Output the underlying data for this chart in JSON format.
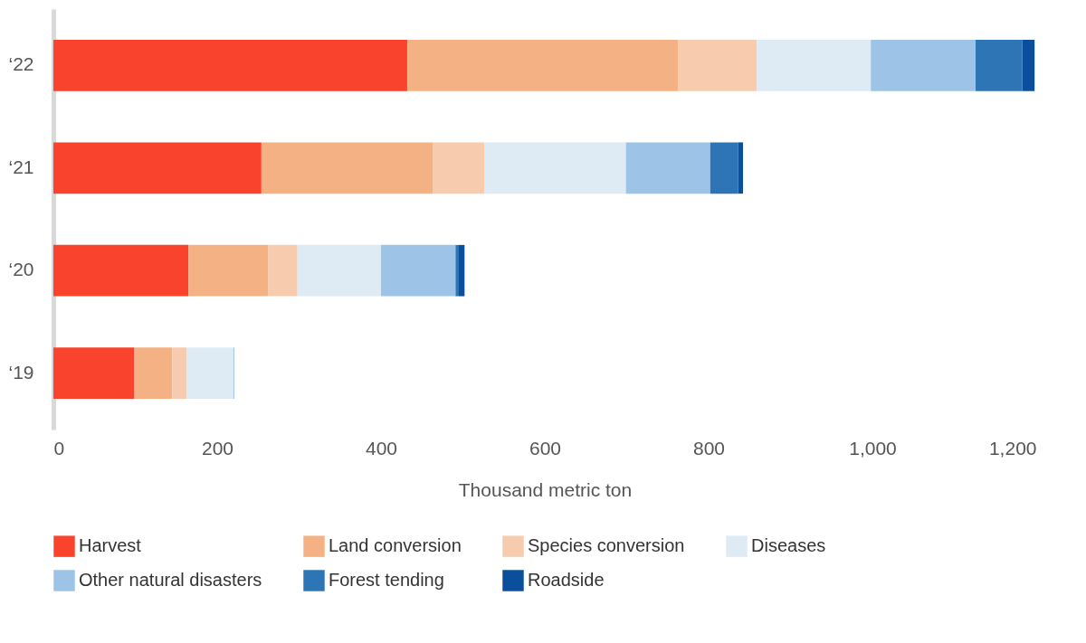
{
  "chart_data": {
    "type": "bar",
    "orientation": "horizontal",
    "stacked": true,
    "categories": [
      "‘22",
      "‘21",
      "‘20",
      "‘19"
    ],
    "series": [
      {
        "name": "Harvest",
        "color": "#f9432d",
        "values": [
          432,
          254,
          165,
          99
        ]
      },
      {
        "name": "Land conversion",
        "color": "#f4b183",
        "values": [
          331,
          209,
          97,
          46
        ]
      },
      {
        "name": "Species conversion",
        "color": "#f7cbae",
        "values": [
          96,
          63,
          36,
          18
        ]
      },
      {
        "name": "Diseases",
        "color": "#deebf5",
        "values": [
          139,
          173,
          102,
          57
        ]
      },
      {
        "name": "Other natural disasters",
        "color": "#9dc3e6",
        "values": [
          128,
          103,
          91,
          1
        ]
      },
      {
        "name": "Forest tending",
        "color": "#2e75b6",
        "values": [
          57,
          34,
          4,
          0
        ]
      },
      {
        "name": "Roadside",
        "color": "#0b4f9c",
        "values": [
          15,
          6,
          7,
          0
        ]
      }
    ],
    "xlabel": "Thousand metric ton",
    "xlim": [
      0,
      1200
    ],
    "xticks": [
      0,
      200,
      400,
      600,
      800,
      {
        "value": 1000,
        "label": "1,000"
      },
      {
        "value": 1200,
        "label": "1,200"
      }
    ],
    "grid": false,
    "legend": "bottom"
  }
}
